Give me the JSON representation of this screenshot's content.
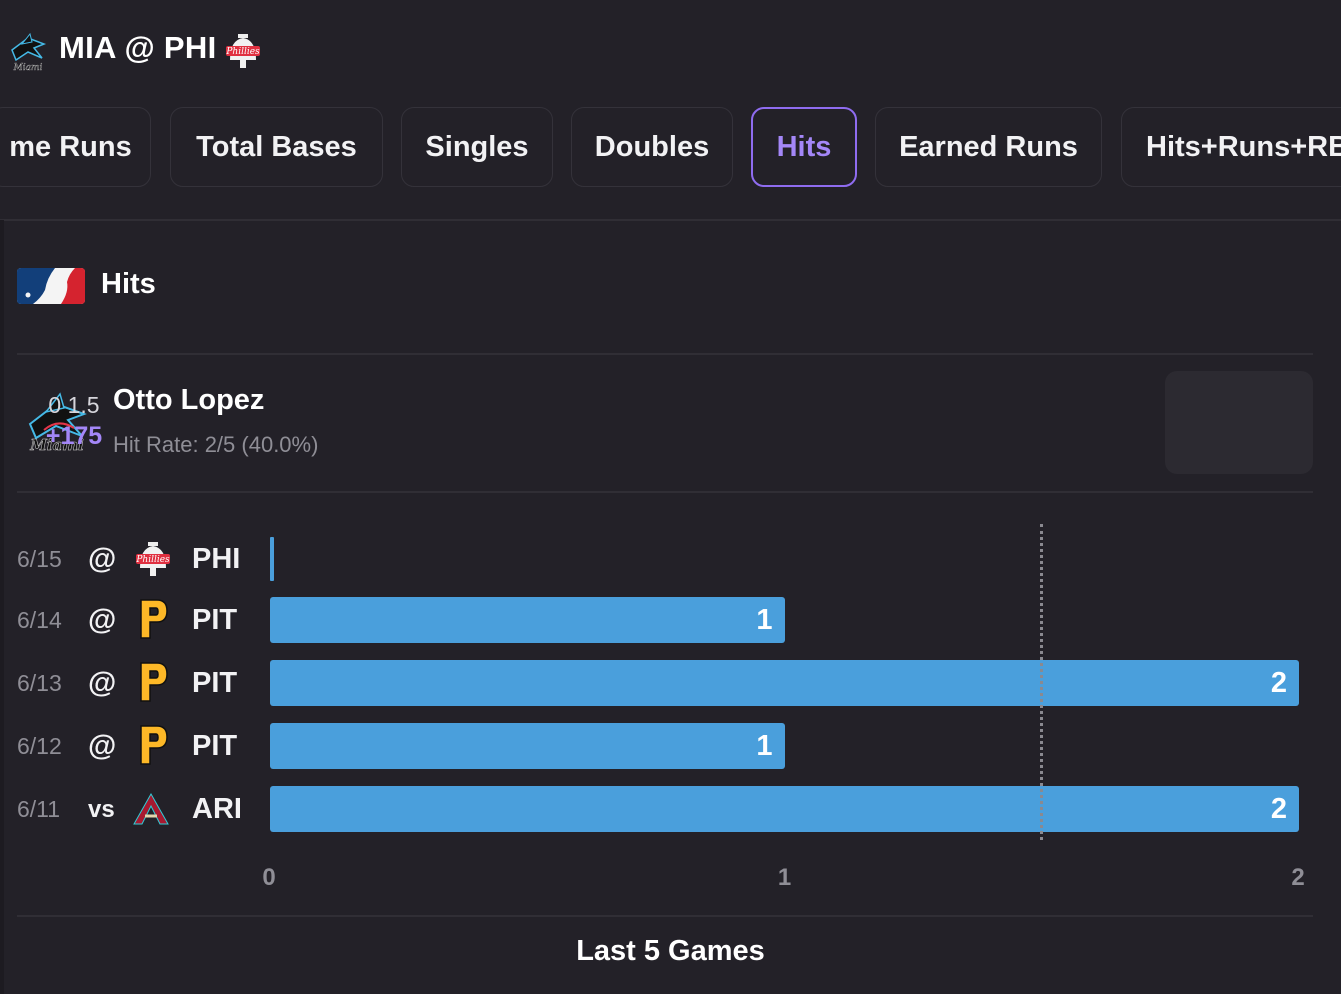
{
  "header": {
    "title": "MIA @ PHI",
    "away_logo": "marlins-logo",
    "home_logo": "phillies-logo"
  },
  "tabs": [
    {
      "label": "me Runs"
    },
    {
      "label": "Total Bases"
    },
    {
      "label": "Singles"
    },
    {
      "label": "Doubles"
    },
    {
      "label": "Hits",
      "active": true
    },
    {
      "label": "Earned Runs"
    },
    {
      "label": "Hits+Runs+RB"
    }
  ],
  "section": {
    "title": "Hits",
    "league_logo": "mlb-logo"
  },
  "player": {
    "name": "Otto Lopez",
    "hit_rate": "Hit Rate: 2/5 (40.0%)",
    "team_logo": "marlins-logo",
    "odds_line": "0 1.5",
    "odds_price": "+175"
  },
  "colors": {
    "background": "#232128",
    "accent": "#8f6cf0",
    "bar": "#4a9fdc"
  },
  "chart_data": {
    "type": "bar",
    "orientation": "horizontal",
    "rows": [
      {
        "date": "6/15",
        "home_away": "@",
        "opponent": "PHI",
        "logo": "phillies-logo",
        "value": 0,
        "label": ""
      },
      {
        "date": "6/14",
        "home_away": "@",
        "opponent": "PIT",
        "logo": "pirates-logo",
        "value": 1,
        "label": "1"
      },
      {
        "date": "6/13",
        "home_away": "@",
        "opponent": "PIT",
        "logo": "pirates-logo",
        "value": 2,
        "label": "2"
      },
      {
        "date": "6/12",
        "home_away": "@",
        "opponent": "PIT",
        "logo": "pirates-logo",
        "value": 1,
        "label": "1"
      },
      {
        "date": "6/11",
        "home_away": "vs",
        "opponent": "ARI",
        "logo": "diamondbacks-logo",
        "value": 2,
        "label": "2"
      }
    ],
    "x_ticks": [
      "0",
      "1",
      "2"
    ],
    "xlim": [
      0,
      2
    ],
    "threshold": 1.5,
    "title": "Last 5 Games"
  }
}
